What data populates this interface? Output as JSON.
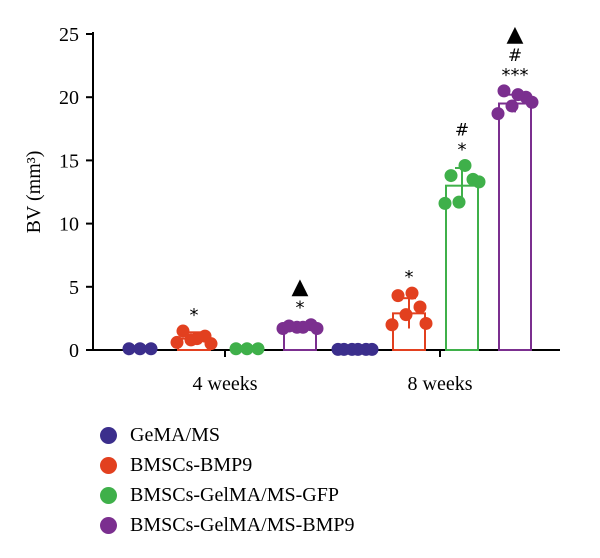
{
  "chart_data": {
    "type": "bar",
    "ylabel": "BV (mm³)",
    "ylim": [
      0,
      25
    ],
    "yticks": [
      "0",
      "5",
      "10",
      "15",
      "20",
      "25"
    ],
    "categories": [
      "4 weeks",
      "8 weeks"
    ],
    "series": [
      {
        "name": "GeMA/MS",
        "color": "#3b2e8c",
        "values": [
          0,
          0
        ],
        "points": [
          [
            0.1,
            0.1,
            0.1
          ],
          [
            0.05,
            0.05,
            0.05,
            0.05,
            0.05,
            0.05
          ]
        ],
        "sig": [
          "",
          ""
        ],
        "error": [
          0,
          0
        ]
      },
      {
        "name": "BMSCs-BMP9",
        "color": "#e2401f",
        "values": [
          0.9,
          2.9
        ],
        "points": [
          [
            0.6,
            0.8,
            1.1,
            1.5,
            0.9,
            0.5
          ],
          [
            2.0,
            2.8,
            3.4,
            4.3,
            4.5,
            2.1
          ]
        ],
        "sig": [
          "*",
          "*"
        ],
        "error": [
          0.5,
          1.2
        ]
      },
      {
        "name": "BMSCs-GelMA/MS-GFP",
        "color": "#3fb04a",
        "values": [
          0.1,
          13.0
        ],
        "points": [
          [
            0.1,
            0.1,
            0.1
          ],
          [
            11.6,
            11.7,
            13.5,
            13.8,
            14.6,
            13.3
          ]
        ],
        "sig": [
          "",
          "*#"
        ],
        "error": [
          0,
          1.4
        ]
      },
      {
        "name": "BMSCs-GelMA/MS-BMP9",
        "color": "#7b2f8f",
        "values": [
          1.8,
          19.5
        ],
        "points": [
          [
            1.7,
            1.8,
            2.0,
            1.9,
            1.8,
            1.7
          ],
          [
            18.7,
            19.3,
            20.0,
            20.5,
            20.2,
            19.6
          ]
        ],
        "sig": [
          "*▲",
          "***#▲"
        ],
        "error": [
          0.3,
          0.7
        ]
      }
    ],
    "legend_position": "bottom-left"
  }
}
